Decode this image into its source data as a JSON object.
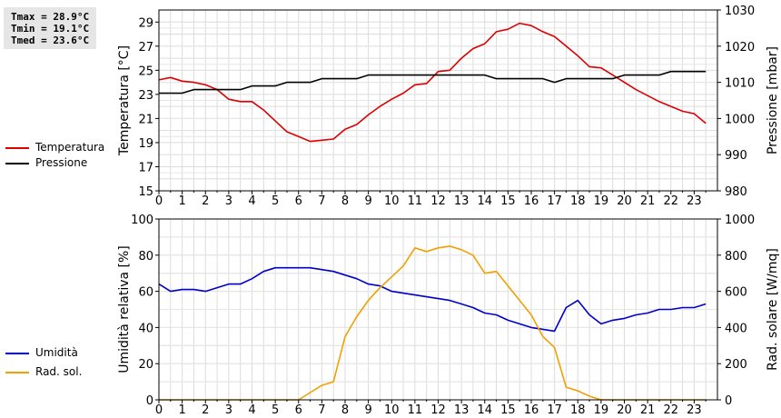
{
  "stats": {
    "tmax": "Tmax = 28.9°C",
    "tmin": "Tmin = 19.1°C",
    "tmed": "Tmed = 23.6°C"
  },
  "chart_data": [
    {
      "type": "line",
      "x_ticks": [
        0,
        1,
        2,
        3,
        4,
        5,
        6,
        7,
        8,
        9,
        10,
        11,
        12,
        13,
        14,
        15,
        16,
        17,
        18,
        19,
        20,
        21,
        22,
        23
      ],
      "xlim": [
        0,
        24
      ],
      "grid": true,
      "ylabel": "Temperatura [°C]",
      "ylim": [
        15,
        30
      ],
      "y_ticks": [
        15,
        17,
        19,
        21,
        23,
        25,
        27,
        29
      ],
      "y2label": "Pressione [mbar]",
      "y2lim": [
        980,
        1030
      ],
      "y2_ticks": [
        980,
        990,
        1000,
        1010,
        1020,
        1030
      ],
      "legend": "left",
      "series": [
        {
          "name": "Temperatura",
          "axis": "left",
          "color": "#dd0000",
          "x": [
            0,
            0.5,
            1,
            1.5,
            2,
            2.5,
            3,
            3.5,
            4,
            4.5,
            5,
            5.5,
            6,
            6.5,
            7,
            7.5,
            8,
            8.5,
            9,
            9.5,
            10,
            10.5,
            11,
            11.5,
            12,
            12.5,
            13,
            13.5,
            14,
            14.5,
            15,
            15.5,
            16,
            16.5,
            17,
            17.5,
            18,
            18.5,
            19,
            19.5,
            20,
            20.5,
            21,
            21.5,
            22,
            22.5,
            23,
            23.5
          ],
          "y": [
            24.2,
            24.4,
            24.1,
            24.0,
            23.8,
            23.4,
            22.6,
            22.4,
            22.4,
            21.7,
            20.8,
            19.9,
            19.5,
            19.1,
            19.2,
            19.3,
            20.1,
            20.5,
            21.3,
            22.0,
            22.6,
            23.1,
            23.8,
            23.9,
            24.9,
            25.0,
            26.0,
            26.8,
            27.2,
            28.2,
            28.4,
            28.9,
            28.7,
            28.2,
            27.8,
            27.0,
            26.2,
            25.3,
            25.2,
            24.6,
            24.0,
            23.4,
            22.9,
            22.4,
            22.0,
            21.6,
            21.4,
            20.6
          ]
        },
        {
          "name": "Pressione",
          "axis": "right",
          "color": "#000000",
          "x": [
            0,
            1,
            1.5,
            2,
            2.5,
            3,
            3.5,
            4,
            4.5,
            5,
            5.5,
            6,
            6.5,
            7,
            7.5,
            8,
            8.5,
            9,
            9.5,
            10,
            10.5,
            11,
            11.5,
            12,
            12.5,
            13,
            13.5,
            14,
            14.5,
            15,
            15.5,
            16,
            16.5,
            17,
            17.5,
            18,
            18.5,
            19,
            19.5,
            20,
            20.5,
            21,
            21.5,
            22,
            22.5,
            23,
            23.5
          ],
          "y": [
            1007,
            1007,
            1008,
            1008,
            1008,
            1008,
            1008,
            1009,
            1009,
            1009,
            1010,
            1010,
            1010,
            1011,
            1011,
            1011,
            1011,
            1012,
            1012,
            1012,
            1012,
            1012,
            1012,
            1012,
            1012,
            1012,
            1012,
            1012,
            1011,
            1011,
            1011,
            1011,
            1011,
            1010,
            1011,
            1011,
            1011,
            1011,
            1011,
            1012,
            1012,
            1012,
            1012,
            1013,
            1013,
            1013,
            1013
          ]
        }
      ]
    },
    {
      "type": "line",
      "x_ticks": [
        0,
        1,
        2,
        3,
        4,
        5,
        6,
        7,
        8,
        9,
        10,
        11,
        12,
        13,
        14,
        15,
        16,
        17,
        18,
        19,
        20,
        21,
        22,
        23
      ],
      "xlim": [
        0,
        24
      ],
      "grid": true,
      "ylabel": "Umidità relativa [%]",
      "ylim": [
        0,
        100
      ],
      "y_ticks": [
        0,
        20,
        40,
        60,
        80,
        100
      ],
      "y2label": "Rad. solare [W/mq]",
      "y2lim": [
        0,
        1000
      ],
      "y2_ticks": [
        0,
        200,
        400,
        600,
        800,
        1000
      ],
      "legend": "left",
      "series": [
        {
          "name": "Umidità",
          "axis": "left",
          "color": "#0000cc",
          "x": [
            0,
            0.5,
            1,
            1.5,
            2,
            2.5,
            3,
            3.5,
            4,
            4.5,
            5,
            5.5,
            6,
            6.5,
            7,
            7.5,
            8,
            8.5,
            9,
            9.5,
            10,
            10.5,
            11,
            11.5,
            12,
            12.5,
            13,
            13.5,
            14,
            14.5,
            15,
            15.5,
            16,
            16.5,
            17,
            17.5,
            18,
            18.5,
            19,
            19.5,
            20,
            20.5,
            21,
            21.5,
            22,
            22.5,
            23,
            23.5
          ],
          "y": [
            64,
            60,
            61,
            61,
            60,
            62,
            64,
            64,
            67,
            71,
            73,
            73,
            73,
            73,
            72,
            71,
            69,
            67,
            64,
            63,
            60,
            59,
            58,
            57,
            56,
            55,
            53,
            51,
            48,
            47,
            44,
            42,
            40,
            39,
            38,
            51,
            55,
            47,
            42,
            44,
            45,
            47,
            48,
            50,
            50,
            51,
            51,
            53
          ]
        },
        {
          "name": "Rad. sol.",
          "axis": "right",
          "color": "#f0a000",
          "x": [
            0,
            6,
            6.5,
            7,
            7.5,
            8,
            8.5,
            9,
            9.5,
            10,
            10.5,
            11,
            11.5,
            12,
            12.5,
            13,
            13.5,
            14,
            14.5,
            15,
            15.5,
            16,
            16.5,
            17,
            17.5,
            18,
            18.5,
            19,
            23.5
          ],
          "y": [
            0,
            0,
            40,
            80,
            100,
            350,
            460,
            550,
            620,
            680,
            740,
            840,
            820,
            840,
            850,
            830,
            800,
            700,
            710,
            630,
            550,
            470,
            350,
            290,
            70,
            50,
            20,
            0,
            0
          ]
        }
      ]
    }
  ]
}
